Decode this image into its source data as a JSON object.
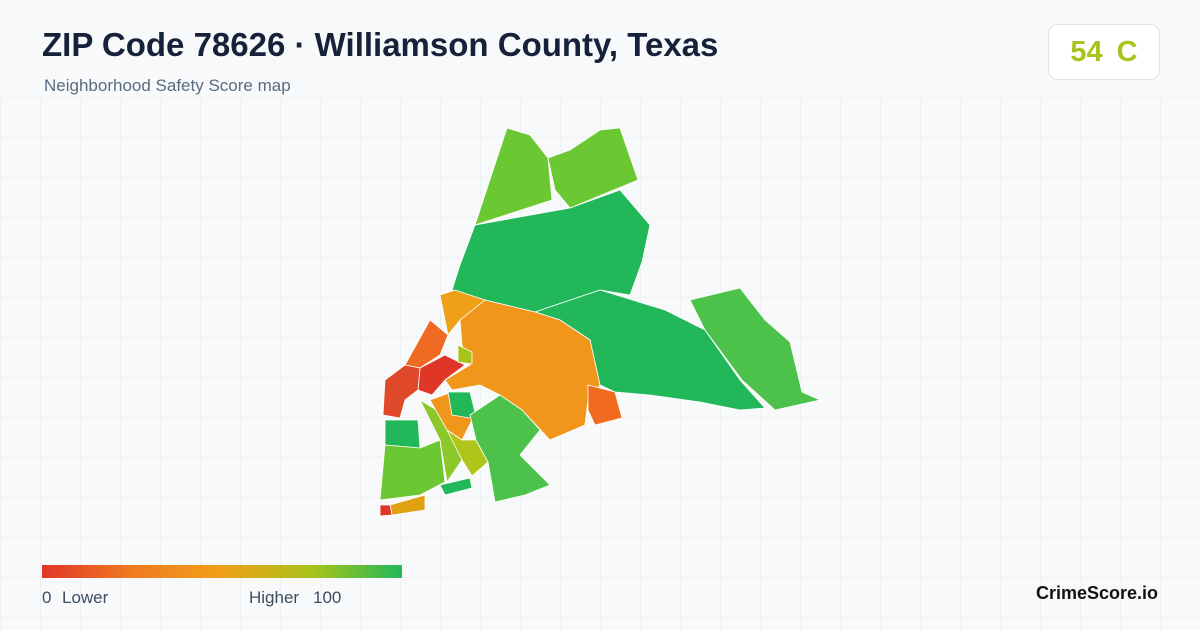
{
  "header": {
    "title": "ZIP Code 78626 · Williamson County, Texas",
    "subtitle": "Neighborhood Safety Score map"
  },
  "score": {
    "value": "54",
    "grade": "C"
  },
  "legend": {
    "min": "0",
    "min_label": "Lower",
    "max_label": "Higher",
    "max": "100"
  },
  "brand": "CrimeScore.io"
}
